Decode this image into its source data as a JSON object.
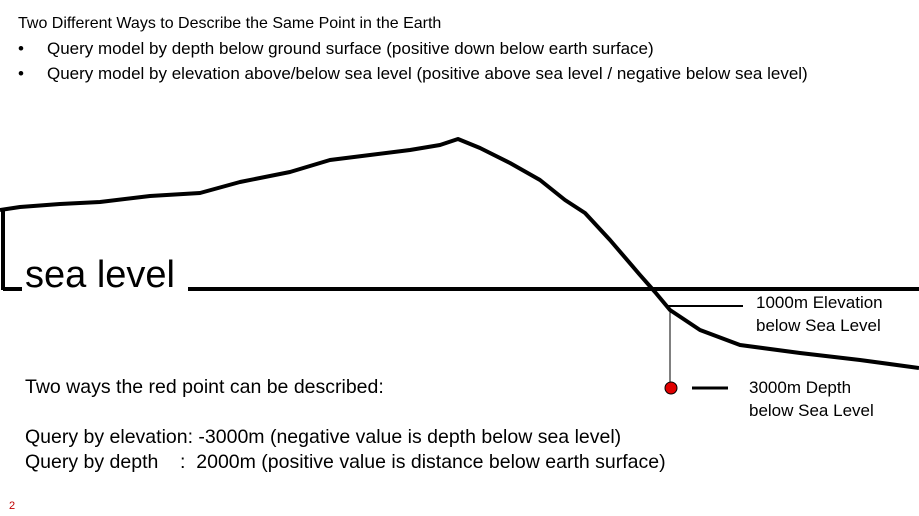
{
  "header": {
    "title": "Two Different Ways to Describe the Same Point in the Earth"
  },
  "bullets": [
    "Query model by depth below ground surface (positive down below earth surface)",
    "Query model by elevation above/below sea level (positive above sea level / negative below sea level)"
  ],
  "diagram": {
    "sea_level_label": "sea level",
    "elevation_annotation": [
      "1000m Elevation",
      "below Sea Level"
    ],
    "depth_annotation": [
      "3000m Depth",
      "below Sea Level"
    ]
  },
  "description": {
    "heading": "Two ways the red point can be described:",
    "lines": [
      "Query by elevation: -3000m (negative value is depth below sea level)",
      "Query by depth    :  2000m (positive value is distance below earth surface)"
    ]
  },
  "footer": {
    "slide_number": "2"
  }
}
